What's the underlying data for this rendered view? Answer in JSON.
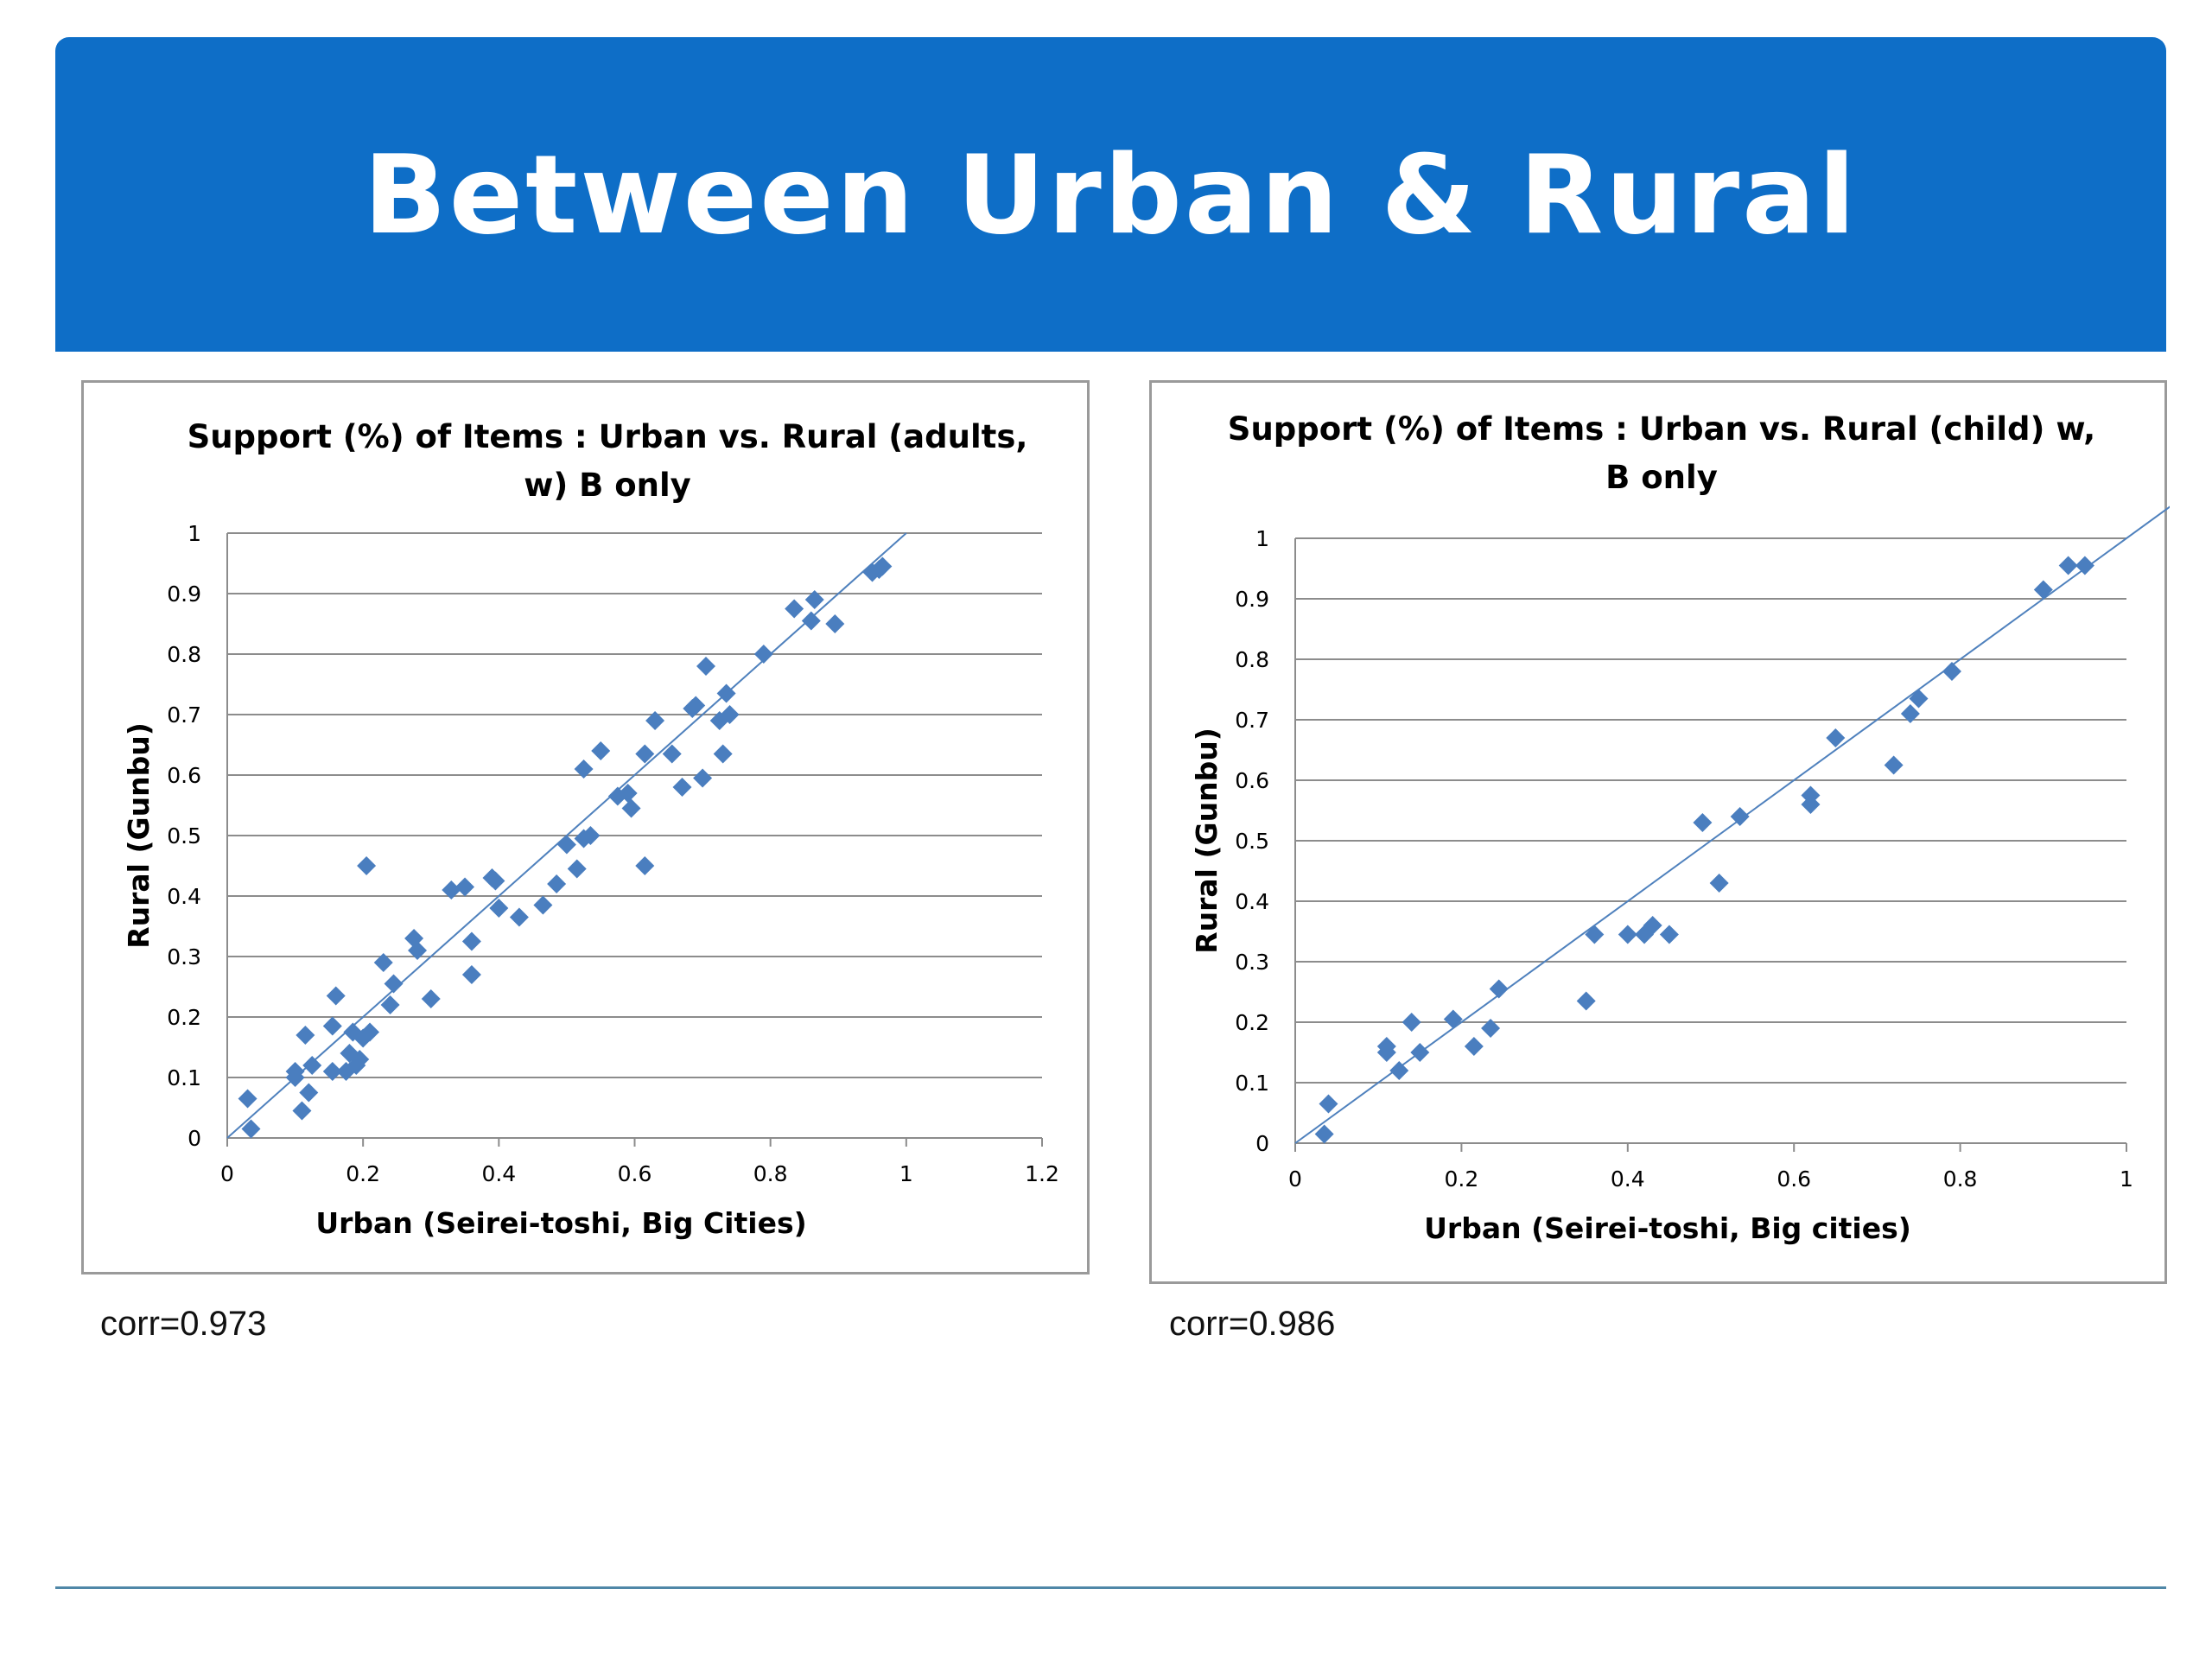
{
  "slide": {
    "title": "Between Urban & Rural",
    "banner_color": "#0e6ec7",
    "marker_color": "#4a7ebf",
    "line_color": "#4f81bd"
  },
  "chart_data": [
    {
      "type": "scatter",
      "title_lines": [
        "Support (%) of Items :  Urban vs. Rural (adults,",
        "w) B only"
      ],
      "xlabel": "Urban (Seirei-toshi, Big Cities)",
      "ylabel": "Rural (Gunbu)",
      "xlim": [
        0,
        1.2
      ],
      "ylim": [
        0,
        1
      ],
      "xticks": [
        "0",
        "0.2",
        "0.4",
        "0.6",
        "0.8",
        "1",
        "1.2"
      ],
      "yticks": [
        "0",
        "0.1",
        "0.2",
        "0.3",
        "0.4",
        "0.5",
        "0.6",
        "0.7",
        "0.8",
        "0.9",
        "1"
      ],
      "grid": true,
      "reference_line": "y = x",
      "annotation": "corr=0.973",
      "points": [
        [
          0.03,
          0.065
        ],
        [
          0.035,
          0.015
        ],
        [
          0.1,
          0.11
        ],
        [
          0.1,
          0.1
        ],
        [
          0.11,
          0.045
        ],
        [
          0.115,
          0.17
        ],
        [
          0.12,
          0.075
        ],
        [
          0.125,
          0.12
        ],
        [
          0.155,
          0.185
        ],
        [
          0.155,
          0.11
        ],
        [
          0.16,
          0.235
        ],
        [
          0.175,
          0.11
        ],
        [
          0.18,
          0.14
        ],
        [
          0.185,
          0.175
        ],
        [
          0.19,
          0.12
        ],
        [
          0.195,
          0.13
        ],
        [
          0.2,
          0.165
        ],
        [
          0.205,
          0.45
        ],
        [
          0.21,
          0.175
        ],
        [
          0.23,
          0.29
        ],
        [
          0.24,
          0.22
        ],
        [
          0.245,
          0.255
        ],
        [
          0.275,
          0.33
        ],
        [
          0.28,
          0.31
        ],
        [
          0.3,
          0.23
        ],
        [
          0.33,
          0.41
        ],
        [
          0.35,
          0.415
        ],
        [
          0.36,
          0.27
        ],
        [
          0.36,
          0.325
        ],
        [
          0.39,
          0.43
        ],
        [
          0.395,
          0.425
        ],
        [
          0.4,
          0.38
        ],
        [
          0.43,
          0.365
        ],
        [
          0.465,
          0.385
        ],
        [
          0.485,
          0.42
        ],
        [
          0.5,
          0.485
        ],
        [
          0.515,
          0.445
        ],
        [
          0.525,
          0.495
        ],
        [
          0.525,
          0.61
        ],
        [
          0.535,
          0.5
        ],
        [
          0.55,
          0.64
        ],
        [
          0.575,
          0.565
        ],
        [
          0.59,
          0.57
        ],
        [
          0.595,
          0.545
        ],
        [
          0.615,
          0.635
        ],
        [
          0.615,
          0.45
        ],
        [
          0.63,
          0.69
        ],
        [
          0.655,
          0.635
        ],
        [
          0.67,
          0.58
        ],
        [
          0.685,
          0.71
        ],
        [
          0.69,
          0.715
        ],
        [
          0.7,
          0.595
        ],
        [
          0.705,
          0.78
        ],
        [
          0.725,
          0.69
        ],
        [
          0.73,
          0.635
        ],
        [
          0.735,
          0.735
        ],
        [
          0.74,
          0.7
        ],
        [
          0.79,
          0.8
        ],
        [
          0.835,
          0.875
        ],
        [
          0.86,
          0.855
        ],
        [
          0.865,
          0.89
        ],
        [
          0.895,
          0.85
        ],
        [
          0.95,
          0.935
        ],
        [
          0.96,
          0.94
        ],
        [
          0.965,
          0.945
        ]
      ]
    },
    {
      "type": "scatter",
      "title_lines": [
        "Support (%) of Items : Urban vs. Rural   (child) w,",
        "B only"
      ],
      "xlabel": "Urban (Seirei-toshi, Big cities)",
      "ylabel": "Rural (Gunbu)",
      "xlim": [
        0,
        1
      ],
      "ylim": [
        0,
        1
      ],
      "xticks": [
        "0",
        "0.2",
        "0.4",
        "0.6",
        "0.8",
        "1"
      ],
      "yticks": [
        "0",
        "0.1",
        "0.2",
        "0.3",
        "0.4",
        "0.5",
        "0.6",
        "0.7",
        "0.8",
        "0.9",
        "1"
      ],
      "grid": true,
      "reference_line": "y = x",
      "annotation": "corr=0.986",
      "points": [
        [
          0.035,
          0.015
        ],
        [
          0.04,
          0.065
        ],
        [
          0.11,
          0.15
        ],
        [
          0.11,
          0.16
        ],
        [
          0.125,
          0.12
        ],
        [
          0.14,
          0.2
        ],
        [
          0.15,
          0.15
        ],
        [
          0.19,
          0.205
        ],
        [
          0.215,
          0.16
        ],
        [
          0.235,
          0.19
        ],
        [
          0.245,
          0.255
        ],
        [
          0.35,
          0.235
        ],
        [
          0.36,
          0.345
        ],
        [
          0.4,
          0.345
        ],
        [
          0.42,
          0.345
        ],
        [
          0.43,
          0.36
        ],
        [
          0.45,
          0.345
        ],
        [
          0.49,
          0.53
        ],
        [
          0.51,
          0.43
        ],
        [
          0.535,
          0.54
        ],
        [
          0.62,
          0.56
        ],
        [
          0.62,
          0.575
        ],
        [
          0.65,
          0.67
        ],
        [
          0.72,
          0.625
        ],
        [
          0.74,
          0.71
        ],
        [
          0.75,
          0.735
        ],
        [
          0.79,
          0.78
        ],
        [
          0.9,
          0.915
        ],
        [
          0.93,
          0.955
        ],
        [
          0.95,
          0.955
        ]
      ]
    }
  ]
}
